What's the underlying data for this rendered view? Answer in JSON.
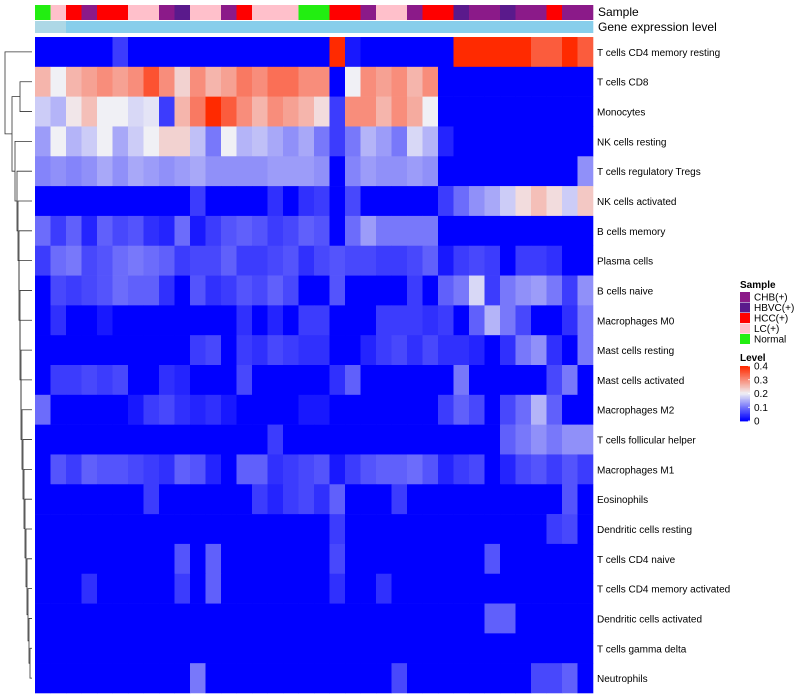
{
  "chart_data": {
    "type": "heatmap",
    "annotation_rows": [
      "Sample",
      "Gene expression level"
    ],
    "rows": [
      "T cells CD4 memory resting",
      "T cells CD8",
      "Monocytes",
      "NK cells resting",
      "T cells regulatory  Tregs",
      "NK cells activated",
      "B cells memory",
      "Plasma cells",
      "B cells naive",
      "Macrophages M0",
      "Mast cells resting",
      "Mast cells activated",
      "Macrophages M2",
      "T cells follicular helper",
      "Macrophages M1",
      "Eosinophils",
      "Dendritic cells resting",
      "T cells CD4 naive",
      "T cells CD4 memory activated",
      "Dendritic cells activated",
      "T cells gamma delta",
      "Neutrophils"
    ],
    "sample_groups": [
      "Normal",
      "LC(+)",
      "HCC(+)",
      "CHB(+)",
      "HCC(+)",
      "HCC(+)",
      "LC(+)",
      "LC(+)",
      "CHB(+)",
      "HBVC(+)",
      "LC(+)",
      "LC(+)",
      "CHB(+)",
      "HCC(+)",
      "LC(+)",
      "LC(+)",
      "LC(+)",
      "Normal",
      "Normal",
      "HCC(+)",
      "HCC(+)",
      "CHB(+)",
      "LC(+)",
      "LC(+)",
      "CHB(+)",
      "HCC(+)",
      "HCC(+)",
      "HBVC(+)",
      "CHB(+)",
      "CHB(+)",
      "HBVC(+)",
      "CHB(+)",
      "CHB(+)",
      "HCC(+)",
      "CHB(+)",
      "CHB(+)"
    ],
    "values": [
      [
        0,
        0,
        0,
        0,
        0,
        0.05,
        0,
        0,
        0,
        0,
        0,
        0,
        0,
        0,
        0,
        0,
        0,
        0,
        0,
        0.4,
        0.02,
        0,
        0,
        0,
        0,
        0,
        0,
        0.4,
        0.4,
        0.4,
        0.4,
        0.4,
        0.35,
        0.35,
        0.4,
        0.35
      ],
      [
        0.26,
        0.2,
        0.26,
        0.28,
        0.3,
        0.28,
        0.3,
        0.36,
        0.3,
        0.23,
        0.3,
        0.26,
        0.28,
        0.32,
        0.3,
        0.33,
        0.33,
        0.3,
        0.3,
        0,
        0.2,
        0.3,
        0.28,
        0.3,
        0.26,
        0.3,
        0,
        0,
        0,
        0,
        0,
        0,
        0,
        0,
        0,
        0
      ],
      [
        0.17,
        0.15,
        0.21,
        0.25,
        0.2,
        0.2,
        0.18,
        0.19,
        0.05,
        0.26,
        0.32,
        0.4,
        0.35,
        0.3,
        0.26,
        0.3,
        0.28,
        0.26,
        0.22,
        0.05,
        0.3,
        0.3,
        0.26,
        0.3,
        0.27,
        0.2,
        0,
        0,
        0,
        0,
        0,
        0,
        0,
        0,
        0,
        0
      ],
      [
        0.13,
        0.2,
        0.15,
        0.17,
        0.2,
        0.14,
        0.17,
        0.2,
        0.23,
        0.23,
        0.16,
        0.1,
        0.2,
        0.15,
        0.16,
        0.14,
        0.12,
        0.14,
        0.1,
        0.05,
        0.1,
        0.15,
        0.13,
        0.1,
        0.18,
        0.15,
        0.03,
        0,
        0,
        0,
        0,
        0,
        0,
        0,
        0,
        0
      ],
      [
        0.11,
        0.12,
        0.11,
        0.12,
        0.14,
        0.12,
        0.14,
        0.13,
        0.12,
        0.13,
        0.14,
        0.12,
        0.12,
        0.12,
        0.12,
        0.13,
        0.13,
        0.13,
        0.12,
        0,
        0.11,
        0.13,
        0.12,
        0.12,
        0.13,
        0.12,
        0,
        0,
        0,
        0,
        0,
        0,
        0,
        0,
        0,
        0.12
      ],
      [
        0,
        0,
        0,
        0,
        0,
        0,
        0,
        0,
        0,
        0,
        0.05,
        0,
        0,
        0,
        0,
        0.04,
        0,
        0.04,
        0.05,
        0,
        0.06,
        0,
        0,
        0,
        0,
        0,
        0.05,
        0.09,
        0.12,
        0.14,
        0.17,
        0.22,
        0.25,
        0.22,
        0.17,
        0.24
      ],
      [
        0.09,
        0.05,
        0.08,
        0.03,
        0.08,
        0.06,
        0.07,
        0.04,
        0.03,
        0.09,
        0.02,
        0.05,
        0.07,
        0.08,
        0.07,
        0.05,
        0.06,
        0.08,
        0.07,
        0,
        0.09,
        0.13,
        0.1,
        0.1,
        0.1,
        0.1,
        0,
        0,
        0,
        0,
        0,
        0,
        0,
        0,
        0,
        0
      ],
      [
        0.05,
        0.09,
        0.1,
        0.06,
        0.07,
        0.09,
        0.1,
        0.09,
        0.08,
        0.05,
        0.06,
        0.06,
        0.08,
        0.05,
        0.05,
        0.06,
        0.07,
        0.04,
        0.06,
        0.07,
        0.06,
        0.06,
        0.05,
        0.05,
        0.06,
        0.08,
        0.02,
        0.05,
        0.06,
        0.05,
        0,
        0.05,
        0.05,
        0.04,
        0,
        0
      ],
      [
        0,
        0.06,
        0.05,
        0.06,
        0.07,
        0.09,
        0.08,
        0.08,
        0.04,
        0,
        0.07,
        0.04,
        0.05,
        0.07,
        0.06,
        0.08,
        0.06,
        0,
        0,
        0.07,
        0,
        0,
        0,
        0,
        0.05,
        0,
        0.08,
        0.1,
        0.18,
        0.05,
        0.1,
        0.12,
        0.13,
        0.1,
        0.05,
        0.12
      ],
      [
        0,
        0.04,
        0,
        0,
        0.02,
        0,
        0,
        0,
        0,
        0,
        0,
        0,
        0,
        0.04,
        0,
        0.03,
        0,
        0.05,
        0.05,
        0,
        0,
        0,
        0.05,
        0.05,
        0.05,
        0.04,
        0.05,
        0,
        0.08,
        0.15,
        0.1,
        0.06,
        0,
        0,
        0.04,
        0.1
      ],
      [
        0,
        0,
        0,
        0,
        0,
        0,
        0,
        0,
        0,
        0,
        0.05,
        0.06,
        0,
        0.05,
        0.04,
        0.06,
        0.05,
        0.04,
        0.04,
        0,
        0,
        0.03,
        0.05,
        0.06,
        0.04,
        0.06,
        0.04,
        0.04,
        0.03,
        0,
        0.04,
        0.1,
        0.12,
        0.04,
        0,
        0.1
      ],
      [
        0,
        0.05,
        0.05,
        0.06,
        0.05,
        0.06,
        0,
        0,
        0.04,
        0.03,
        0,
        0,
        0,
        0.06,
        0,
        0,
        0,
        0,
        0,
        0.04,
        0.08,
        0,
        0,
        0,
        0,
        0,
        0,
        0.1,
        0,
        0,
        0,
        0,
        0,
        0.06,
        0.1,
        0
      ],
      [
        0.09,
        0,
        0,
        0,
        0,
        0,
        0.02,
        0.05,
        0.06,
        0.04,
        0.03,
        0.04,
        0.02,
        0,
        0,
        0,
        0,
        0.02,
        0.02,
        0,
        0,
        0,
        0,
        0,
        0,
        0,
        0.05,
        0.08,
        0.06,
        0,
        0.06,
        0.09,
        0.15,
        0.08,
        0,
        0
      ],
      [
        0,
        0,
        0,
        0,
        0,
        0,
        0,
        0,
        0,
        0,
        0,
        0,
        0,
        0,
        0,
        0.05,
        0,
        0,
        0,
        0,
        0,
        0,
        0,
        0,
        0,
        0,
        0,
        0,
        0,
        0,
        0.08,
        0.1,
        0.12,
        0.1,
        0.12,
        0.12
      ],
      [
        0,
        0.07,
        0.05,
        0.08,
        0.07,
        0.07,
        0.06,
        0.05,
        0.04,
        0.08,
        0.07,
        0.03,
        0,
        0.08,
        0.08,
        0.04,
        0.05,
        0.06,
        0.07,
        0.02,
        0.05,
        0.07,
        0.08,
        0.08,
        0.09,
        0.07,
        0.03,
        0.05,
        0.06,
        0,
        0.03,
        0.06,
        0.07,
        0.05,
        0.07,
        0.05
      ],
      [
        0,
        0,
        0,
        0,
        0,
        0,
        0,
        0.05,
        0,
        0,
        0,
        0,
        0,
        0,
        0.05,
        0.03,
        0.05,
        0.06,
        0.04,
        0.08,
        0,
        0,
        0,
        0.05,
        0,
        0,
        0,
        0,
        0,
        0,
        0,
        0,
        0,
        0,
        0.07,
        0
      ],
      [
        0,
        0,
        0,
        0,
        0,
        0,
        0,
        0,
        0,
        0,
        0,
        0,
        0,
        0,
        0,
        0,
        0,
        0,
        0,
        0.05,
        0,
        0,
        0,
        0,
        0,
        0,
        0,
        0,
        0,
        0,
        0,
        0,
        0,
        0.05,
        0.06,
        0
      ],
      [
        0,
        0,
        0,
        0,
        0,
        0,
        0,
        0,
        0,
        0.07,
        0,
        0.08,
        0,
        0,
        0,
        0,
        0,
        0,
        0,
        0.06,
        0,
        0,
        0,
        0,
        0,
        0,
        0,
        0,
        0,
        0.07,
        0,
        0,
        0,
        0,
        0,
        0
      ],
      [
        0,
        0,
        0,
        0.04,
        0,
        0,
        0,
        0,
        0,
        0.05,
        0,
        0.08,
        0,
        0,
        0,
        0,
        0,
        0,
        0,
        0.04,
        0,
        0,
        0.04,
        0,
        0,
        0,
        0,
        0,
        0,
        0,
        0,
        0,
        0,
        0,
        0,
        0
      ],
      [
        0,
        0,
        0,
        0,
        0,
        0,
        0,
        0,
        0,
        0,
        0,
        0,
        0,
        0,
        0,
        0,
        0,
        0,
        0,
        0,
        0,
        0,
        0,
        0,
        0,
        0,
        0,
        0,
        0,
        0.08,
        0.08,
        0,
        0,
        0,
        0,
        0
      ],
      [
        0,
        0,
        0,
        0,
        0,
        0,
        0,
        0,
        0,
        0,
        0,
        0,
        0,
        0,
        0,
        0,
        0,
        0,
        0,
        0,
        0,
        0,
        0,
        0,
        0,
        0,
        0,
        0,
        0,
        0,
        0,
        0,
        0,
        0,
        0,
        0
      ],
      [
        0,
        0,
        0,
        0,
        0,
        0,
        0,
        0,
        0,
        0,
        0.1,
        0,
        0,
        0,
        0,
        0,
        0,
        0,
        0,
        0,
        0,
        0,
        0,
        0.06,
        0,
        0,
        0,
        0,
        0,
        0,
        0,
        0,
        0.06,
        0.06,
        0.08,
        0
      ]
    ],
    "color_scale": {
      "min": 0,
      "max": 0.4,
      "low": "#0000FF",
      "mid": "#F0F0F5",
      "high": "#FF2A00"
    },
    "legend_sample": {
      "title": "Sample",
      "items": [
        {
          "label": "CHB(+)",
          "color": "#8B1A89"
        },
        {
          "label": "HBVC(+)",
          "color": "#5A1A8C"
        },
        {
          "label": "HCC(+)",
          "color": "#FF0000"
        },
        {
          "label": "LC(+)",
          "color": "#FFC0CB"
        },
        {
          "label": "Normal",
          "color": "#22EE11"
        }
      ]
    },
    "legend_level": {
      "title": "Level",
      "ticks": [
        "0.4",
        "0.3",
        "0.2",
        "0.1",
        "0"
      ],
      "tick_values": [
        0.4,
        0.3,
        0.2,
        0.1,
        0
      ]
    },
    "gene_expression_bar": {
      "segments": [
        {
          "count": 2,
          "color": "#ADD8E6"
        },
        {
          "count": 34,
          "color": "#87CEEB"
        }
      ]
    }
  }
}
